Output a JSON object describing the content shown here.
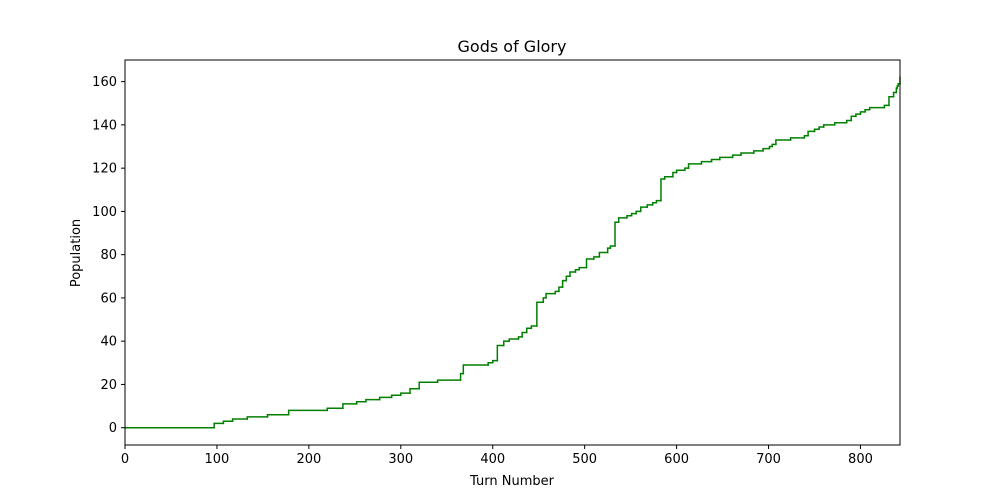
{
  "chart_data": {
    "type": "line",
    "title": "Gods of Glory",
    "x_label": "Turn Number",
    "y_label": "Population",
    "drawstyle": "steps-post",
    "xlim": [
      0,
      843
    ],
    "xticks": [
      0,
      100,
      200,
      300,
      400,
      500,
      600,
      700,
      800
    ],
    "ylim": [
      -8,
      170
    ],
    "yticks": [
      0,
      20,
      40,
      60,
      80,
      100,
      120,
      140,
      160
    ],
    "series": [
      {
        "color": "#008000",
        "x": [
          0,
          97,
          107,
          117,
          133,
          155,
          178,
          220,
          237,
          252,
          262,
          277,
          290,
          300,
          310,
          320,
          340,
          365,
          368,
          395,
          400,
          405,
          412,
          418,
          428,
          432,
          437,
          442,
          448,
          455,
          458,
          468,
          472,
          476,
          480,
          484,
          490,
          494,
          502,
          510,
          516,
          525,
          528,
          533,
          537,
          546,
          551,
          556,
          561,
          568,
          574,
          578,
          583,
          587,
          596,
          600,
          609,
          613,
          627,
          638,
          647,
          661,
          670,
          684,
          694,
          701,
          704,
          708,
          724,
          739,
          743,
          750,
          755,
          760,
          772,
          785,
          790,
          795,
          800,
          805,
          810,
          826,
          831,
          836,
          839,
          840,
          841,
          843
        ],
        "values": [
          0,
          2,
          3,
          4,
          5,
          6,
          8,
          9,
          11,
          12,
          13,
          14,
          15,
          16,
          18,
          21,
          22,
          25,
          29,
          30,
          31,
          38,
          40,
          41,
          42,
          44,
          46,
          47,
          58,
          60,
          62,
          63,
          65,
          68,
          70,
          72,
          73,
          74,
          78,
          79,
          81,
          83,
          84,
          95,
          97,
          98,
          99,
          100,
          102,
          103,
          104,
          105,
          115,
          116,
          118,
          119,
          120,
          122,
          123,
          124,
          125,
          126,
          127,
          128,
          129,
          130,
          131,
          133,
          134,
          135,
          137,
          138,
          139,
          140,
          141,
          142,
          144,
          145,
          146,
          147,
          148,
          149,
          153,
          155,
          157,
          158,
          159,
          162
        ]
      }
    ]
  }
}
